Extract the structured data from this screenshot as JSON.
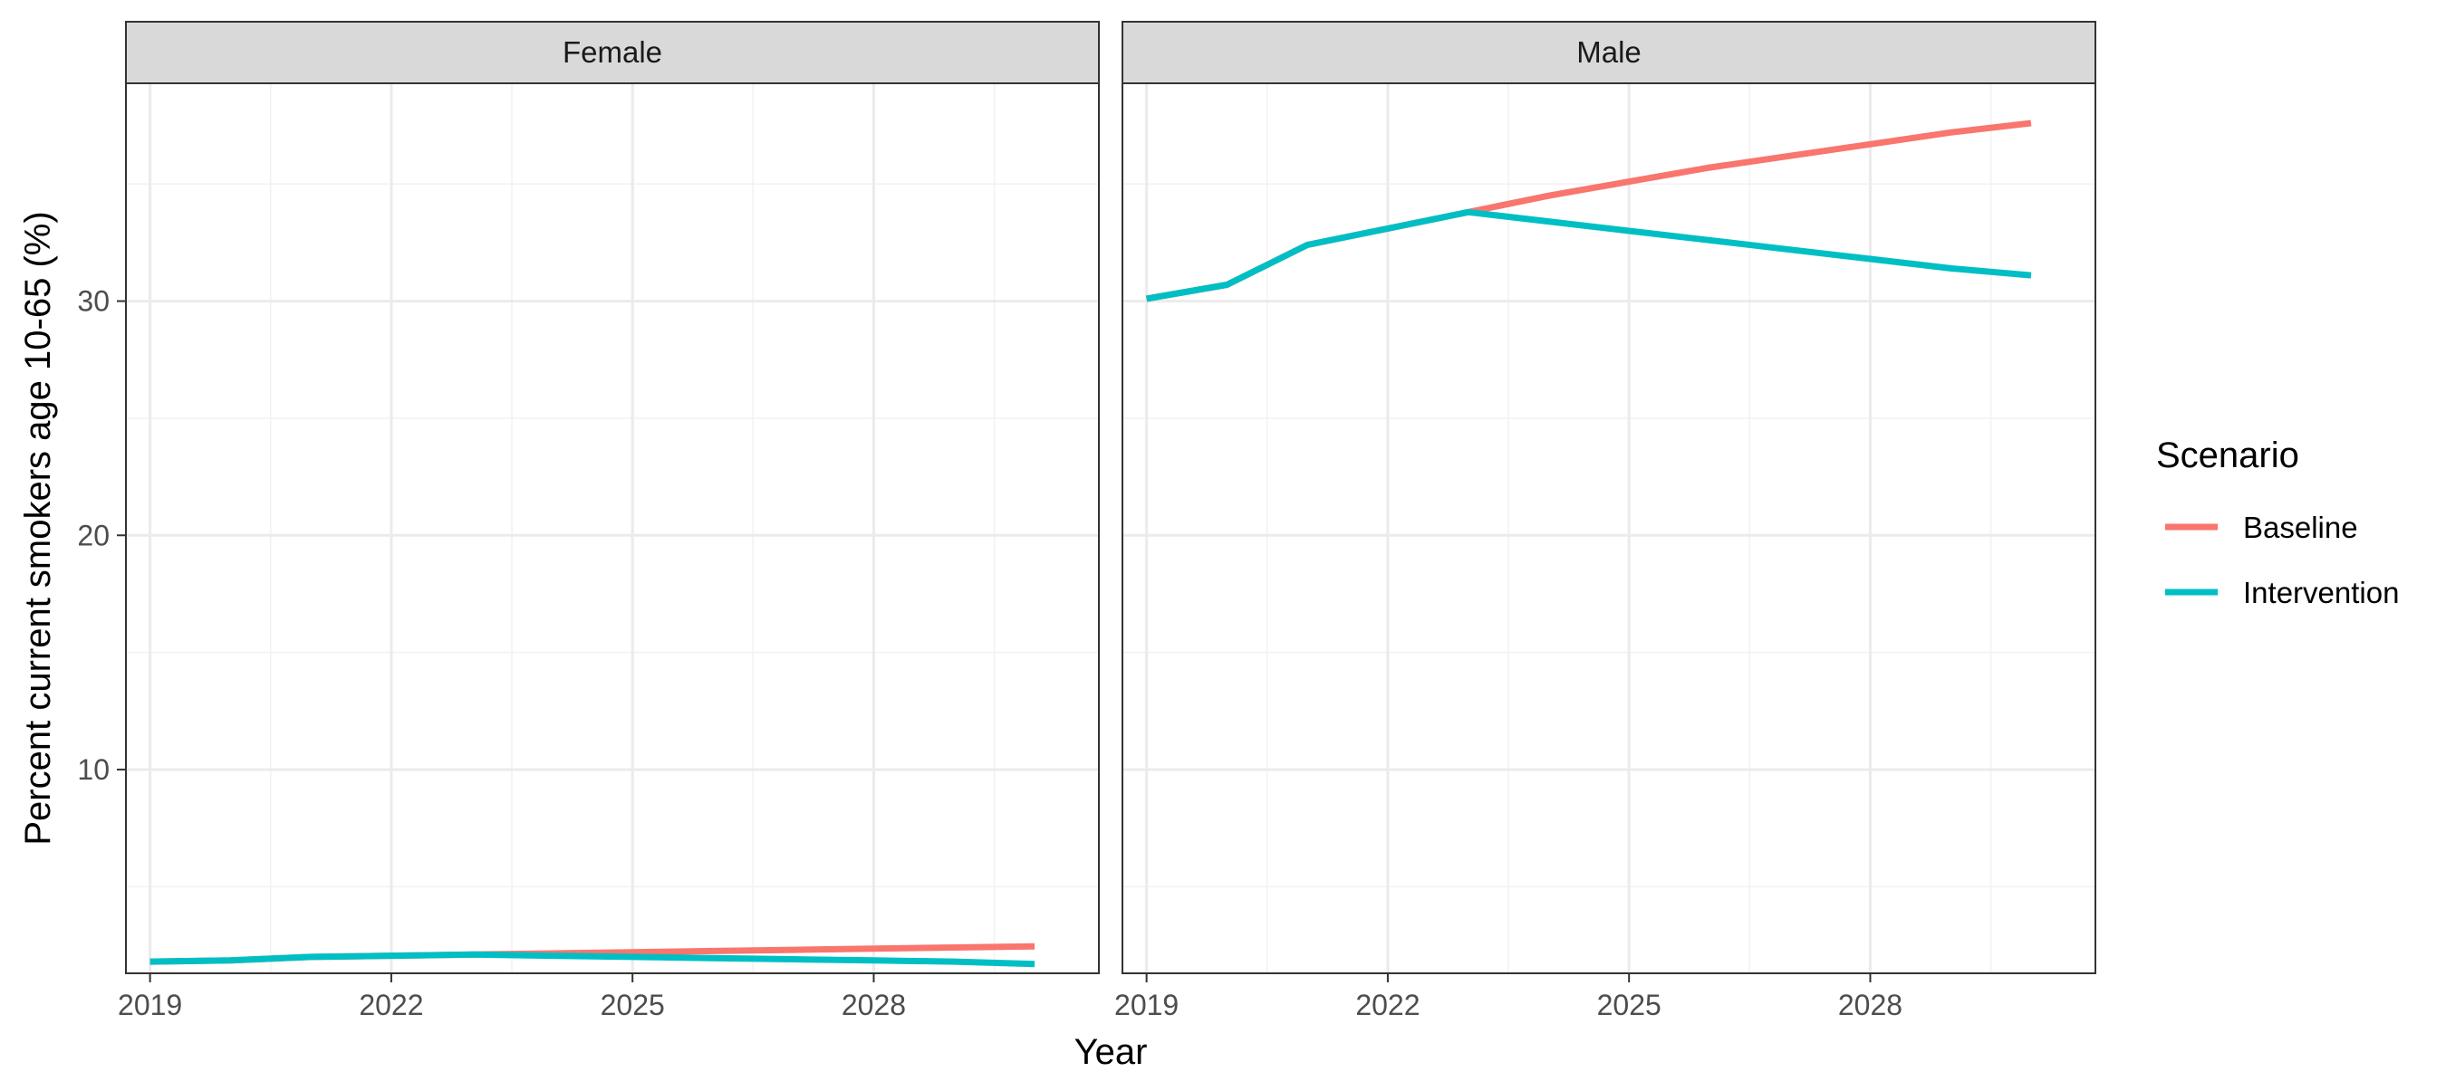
{
  "chart_data": {
    "type": "line",
    "xlabel": "Year",
    "ylabel": "Percent current smokers age 10-65 (%)",
    "xlim": [
      2018.7,
      2030.8
    ],
    "ylim": [
      1.3,
      39.3
    ],
    "x_ticks": [
      2019,
      2022,
      2025,
      2028
    ],
    "y_ticks": [
      10,
      20,
      30
    ],
    "x_minor": [
      2020.5,
      2023.5,
      2026.5,
      2029.5
    ],
    "y_minor": [
      5,
      15,
      25,
      35
    ],
    "grid": true,
    "legend": {
      "title": "Scenario",
      "position": "right",
      "entries": [
        {
          "name": "Baseline",
          "color": "#F8766D"
        },
        {
          "name": "Intervention",
          "color": "#00BFC4"
        }
      ]
    },
    "panels": [
      {
        "label": "Female",
        "series": [
          {
            "name": "Baseline",
            "color": "#F8766D",
            "x": [
              2019,
              2020,
              2021,
              2022,
              2023,
              2024,
              2025,
              2026,
              2027,
              2028,
              2029,
              2030
            ],
            "y": [
              1.8,
              1.85,
              2.0,
              2.05,
              2.1,
              2.15,
              2.2,
              2.25,
              2.3,
              2.35,
              2.4,
              2.45
            ]
          },
          {
            "name": "Intervention",
            "color": "#00BFC4",
            "x": [
              2019,
              2020,
              2021,
              2022,
              2023,
              2024,
              2025,
              2026,
              2027,
              2028,
              2029,
              2030
            ],
            "y": [
              1.8,
              1.85,
              2.0,
              2.05,
              2.1,
              2.05,
              2.0,
              1.95,
              1.9,
              1.85,
              1.8,
              1.7
            ]
          }
        ]
      },
      {
        "label": "Male",
        "series": [
          {
            "name": "Baseline",
            "color": "#F8766D",
            "x": [
              2019,
              2020,
              2021,
              2022,
              2023,
              2024,
              2025,
              2026,
              2027,
              2028,
              2029,
              2030
            ],
            "y": [
              30.1,
              30.7,
              32.4,
              33.1,
              33.8,
              34.5,
              35.1,
              35.7,
              36.2,
              36.7,
              37.2,
              37.6
            ]
          },
          {
            "name": "Intervention",
            "color": "#00BFC4",
            "x": [
              2019,
              2020,
              2021,
              2022,
              2023,
              2024,
              2025,
              2026,
              2027,
              2028,
              2029,
              2030
            ],
            "y": [
              30.1,
              30.7,
              32.4,
              33.1,
              33.8,
              33.4,
              33.0,
              32.6,
              32.2,
              31.8,
              31.4,
              31.1
            ]
          }
        ]
      }
    ]
  }
}
